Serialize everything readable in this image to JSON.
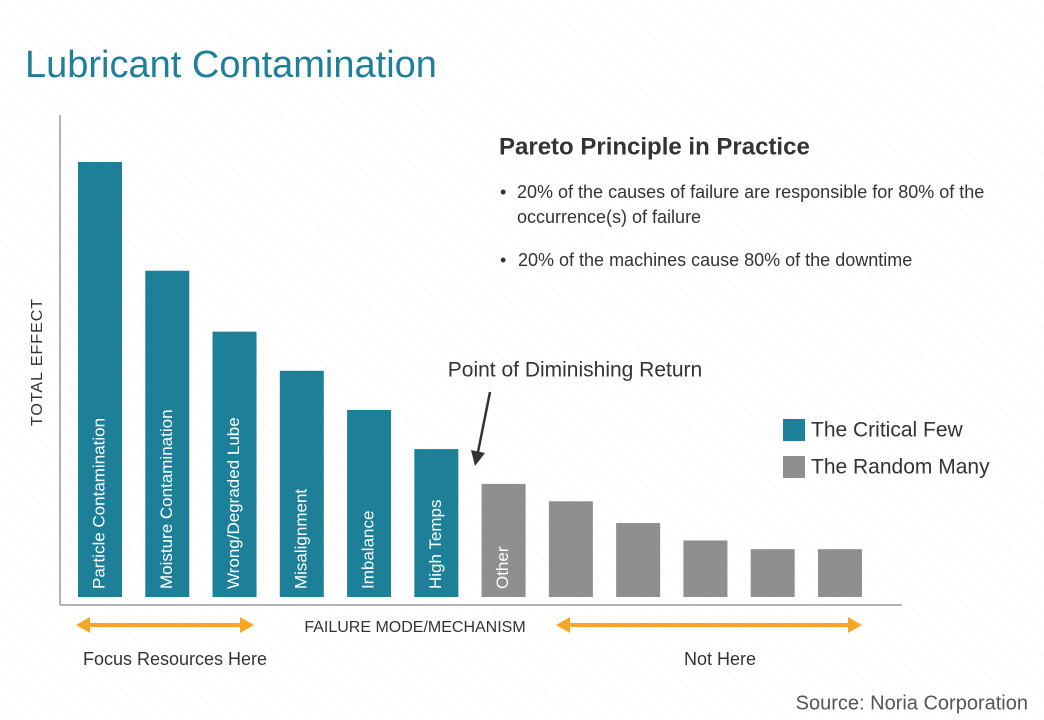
{
  "chart_data": {
    "type": "bar",
    "title": "Lubricant Contamination",
    "y_label": "TOTAL  EFFECT",
    "x_label": "FAILURE MODE/MECHANISM",
    "categories": [
      "Particle Contamination",
      "Moisture Contamination",
      "Wrong/Degraded Lube",
      "Misalignment",
      "Imbalance",
      "High Temps",
      "Other",
      null,
      null,
      null,
      null,
      null
    ],
    "series": [
      {
        "name": "The Critical Few",
        "color": "#1e7f99",
        "values": [
          100,
          75,
          61,
          52,
          43,
          34,
          null,
          null,
          null,
          null,
          null,
          null
        ]
      },
      {
        "name": "The Random Many",
        "color": "#8f8f8f",
        "values": [
          null,
          null,
          null,
          null,
          null,
          null,
          26,
          22,
          17,
          13,
          11,
          11
        ]
      }
    ],
    "annotation": "Point of Diminishing Return",
    "box_title": "Pareto Principle in Practice",
    "bullets": [
      "20% of the causes of failure are responsible for 80% of the occurrence(s) of failure",
      "20% of the machines cause 80% of the downtime"
    ],
    "left_note": "Focus Resources Here",
    "right_note": "Not Here",
    "source": "Source: Noria Corporation"
  }
}
